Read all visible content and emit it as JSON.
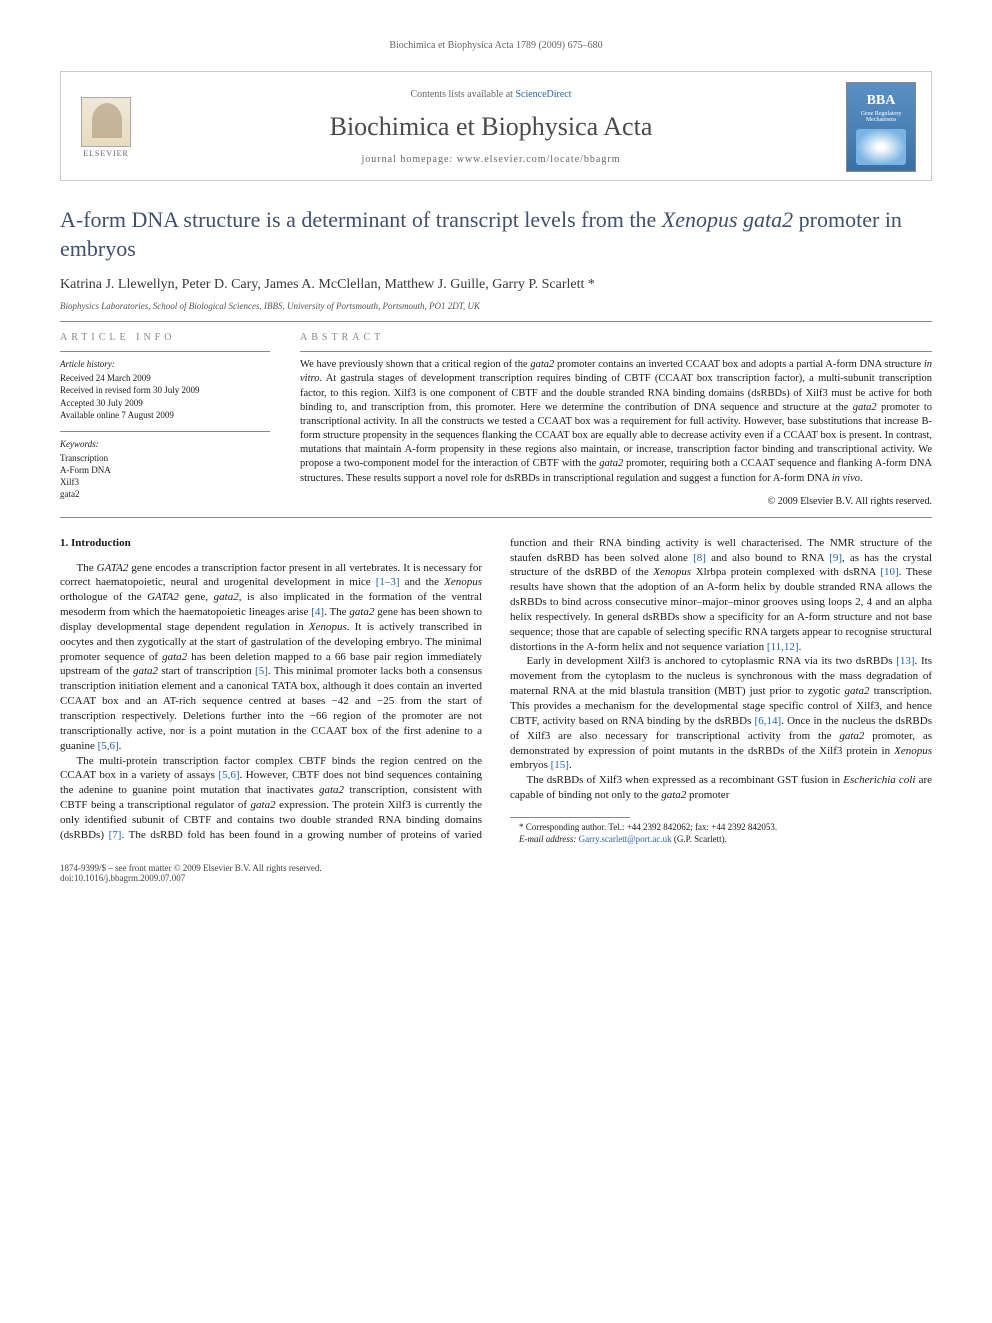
{
  "running_head": "Biochimica et Biophysica Acta 1789 (2009) 675–680",
  "header": {
    "publisher": "ELSEVIER",
    "contents_prefix": "Contents lists available at ",
    "contents_link": "ScienceDirect",
    "journal_title": "Biochimica et Biophysica Acta",
    "homepage_prefix": "journal homepage: ",
    "homepage_url": "www.elsevier.com/locate/bbagrm",
    "cover_abbrev": "BBA",
    "cover_sub": "Gene Regulatory Mechanisms"
  },
  "title_a": "A-form DNA structure is a determinant of transcript levels from the ",
  "title_b": "Xenopus gata2",
  "title_c": " promoter in embryos",
  "authors_text": "Katrina J. Llewellyn, Peter D. Cary, James A. McClellan, Matthew J. Guille, Garry P. Scarlett ",
  "author_star": "*",
  "affiliation": "Biophysics Laboratories, School of Biological Sciences, IBBS, University of Portsmouth, Portsmouth, PO1 2DT, UK",
  "info": {
    "heading": "article info",
    "history_label": "Article history:",
    "received": "Received 24 March 2009",
    "revised": "Received in revised form 30 July 2009",
    "accepted": "Accepted 30 July 2009",
    "online": "Available online 7 August 2009",
    "keywords_label": "Keywords:",
    "kw1": "Transcription",
    "kw2": "A-Form DNA",
    "kw3": "Xilf3",
    "kw4": "gata2"
  },
  "abstract": {
    "heading": "abstract",
    "text_1": "We have previously shown that a critical region of the ",
    "it_1": "gata2",
    "text_2": " promoter contains an inverted CCAAT box and adopts a partial A-form DNA structure ",
    "it_2": "in vitro",
    "text_3": ". At gastrula stages of development transcription requires binding of CBTF (CCAAT box transcription factor), a multi-subunit transcription factor, to this region. Xilf3 is one component of CBTF and the double stranded RNA binding domains (dsRBDs) of Xilf3 must be active for both binding to, and transcription from, this promoter. Here we determine the contribution of DNA sequence and structure at the ",
    "it_3": "gata2",
    "text_4": " promoter to transcriptional activity. In all the constructs we tested a CCAAT box was a requirement for full activity. However, base substitutions that increase B-form structure propensity in the sequences flanking the CCAAT box are equally able to decrease activity even if a CCAAT box is present. In contrast, mutations that maintain A-form propensity in these regions also maintain, or increase, transcription factor binding and transcriptional activity. We propose a two-component model for the interaction of CBTF with the ",
    "it_4": "gata2",
    "text_5": " promoter, requiring both a CCAAT sequence and flanking A-form DNA structures. These results support a novel role for dsRBDs in transcriptional regulation and suggest a function for A-form DNA ",
    "it_5": "in vivo",
    "text_6": ".",
    "copyright": "© 2009 Elsevier B.V. All rights reserved."
  },
  "intro_heading": "1. Introduction",
  "p1_a": "The ",
  "p1_b": "GATA2",
  "p1_c": " gene encodes a transcription factor present in all vertebrates. It is necessary for correct haematopoietic, neural and urogenital development in mice ",
  "p1_ref1": "[1–3]",
  "p1_d": " and the ",
  "p1_e": "Xenopus",
  "p1_f": " orthologue of the ",
  "p1_g": "GATA2",
  "p1_h": " gene, ",
  "p1_i": "gata2",
  "p1_j": ", is also implicated in the formation of the ventral mesoderm from which the haematopoietic lineages arise ",
  "p1_ref2": "[4]",
  "p1_k": ". The ",
  "p1_l": "gata2",
  "p1_m": " gene has been shown to display developmental stage dependent regulation in ",
  "p1_n": "Xenopus",
  "p1_o": ". It is actively transcribed in oocytes and then zygotically at the start of gastrulation of the developing embryo. The minimal promoter sequence of ",
  "p1_p": "gata2",
  "p1_q": " has been deletion mapped to a 66 base pair region immediately upstream of the ",
  "p1_r": "gata2",
  "p1_s": " start of transcription ",
  "p1_ref3": "[5]",
  "p1_t": ". This minimal promoter lacks both a consensus transcription initiation element and a canonical TATA box, although it does contain an inverted CCAAT box and an AT-rich sequence centred at bases −42 and −25 from the start of transcription respectively. Deletions further into the −66 region of the promoter are not transcriptionally active, nor is a point mutation in the CCAAT box of the first adenine to a guanine ",
  "p1_ref4": "[5,6]",
  "p1_u": ".",
  "p2_a": "The multi-protein transcription factor complex CBTF binds the region centred on the CCAAT box in a variety of assays ",
  "p2_ref1": "[5,6]",
  "p2_b": ". However, CBTF does not bind sequences containing the adenine to guanine point mutation that inactivates ",
  "p2_c": "gata2",
  "p2_d": " transcription, consistent with CBTF being a transcriptional regulator of ",
  "p2_e": "gata2",
  "p2_f": " expression. The protein Xilf3 is currently the only identified subunit of CBTF and contains two double stranded RNA binding domains (dsRBDs) ",
  "p2_ref2": "[7]",
  "p2_g": ". The dsRBD fold has been found in a growing number of proteins of varied function and their RNA binding activity is well characterised. The NMR structure of the staufen dsRBD has been solved alone ",
  "p2_ref3": "[8]",
  "p2_h": " and also bound to RNA ",
  "p2_ref4": "[9]",
  "p2_i": ", as has the crystal structure of the dsRBD of the ",
  "p2_j": "Xenopus",
  "p2_k": " Xlrbpa protein complexed with dsRNA ",
  "p2_ref5": "[10]",
  "p2_l": ". These results have shown that the adoption of an A-form helix by double stranded RNA allows the dsRBDs to bind across consecutive minor–major–minor grooves using loops 2, 4 and an alpha helix respectively. In general dsRBDs show a specificity for an A-form structure and not base sequence; those that are capable of selecting specific RNA targets appear to recognise structural distortions in the A-form helix and not sequence variation ",
  "p2_ref6": "[11,12]",
  "p2_m": ".",
  "p3_a": "Early in development Xilf3 is anchored to cytoplasmic RNA via its two dsRBDs ",
  "p3_ref1": "[13]",
  "p3_b": ". Its movement from the cytoplasm to the nucleus is synchronous with the mass degradation of maternal RNA at the mid blastula transition (MBT) just prior to zygotic ",
  "p3_c": "gata2",
  "p3_d": " transcription. This provides a mechanism for the developmental stage specific control of Xilf3, and hence CBTF, activity based on RNA binding by the dsRBDs ",
  "p3_ref2": "[6,14]",
  "p3_e": ". Once in the nucleus the dsRBDs of Xilf3 are also necessary for transcriptional activity from the ",
  "p3_f": "gata2",
  "p3_g": " promoter, as demonstrated by expression of point mutants in the dsRBDs of the Xilf3 protein in ",
  "p3_h": "Xenopus",
  "p3_i": " embryos ",
  "p3_ref3": "[15]",
  "p3_j": ".",
  "p4_a": "The dsRBDs of Xilf3 when expressed as a recombinant GST fusion in ",
  "p4_b": "Escherichia coli",
  "p4_c": " are capable of binding not only to the ",
  "p4_d": "gata2",
  "p4_e": " promoter",
  "footnote_star": "*",
  "footnote_text": " Corresponding author. Tel.: +44 2392 842062; fax: +44 2392 842053.",
  "footnote_email_label": "E-mail address:",
  "footnote_email": "Garry.scarlett@port.ac.uk",
  "footnote_email_suffix": " (G.P. Scarlett).",
  "footer_line1": "1874-9399/$ – see front matter © 2009 Elsevier B.V. All rights reserved.",
  "footer_line2": "doi:10.1016/j.bbagrm.2009.07.007"
}
